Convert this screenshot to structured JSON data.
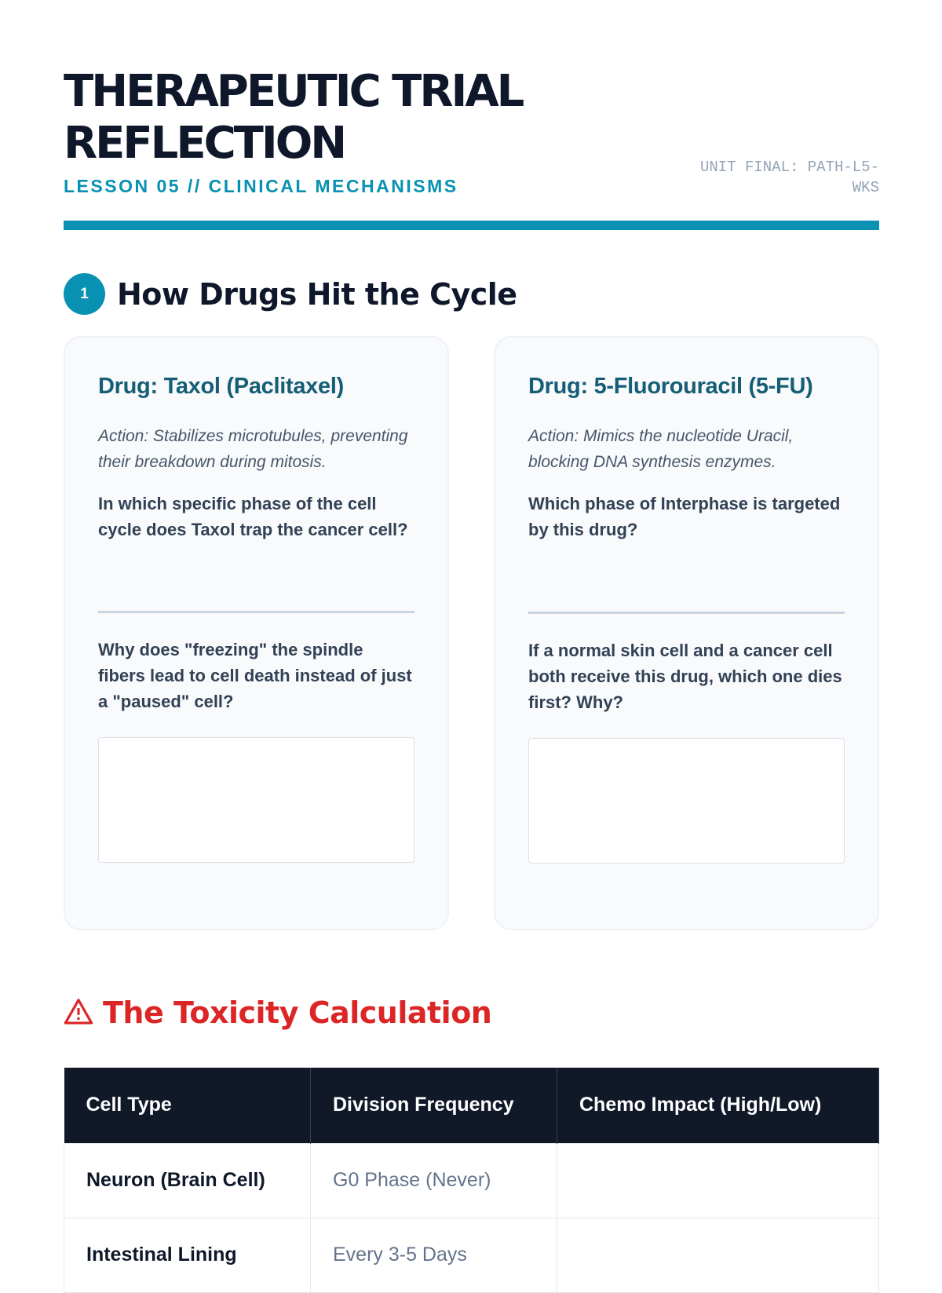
{
  "header": {
    "title": "THERAPEUTIC TRIAL REFLECTION",
    "subtitle": "LESSON 05 // CLINICAL MECHANISMS",
    "code": "UNIT FINAL: PATH-L5-WKS",
    "accent": "#0891b2"
  },
  "section1": {
    "number": "1",
    "title": "How Drugs Hit the Cycle"
  },
  "cards": [
    {
      "title": "Drug: Taxol (Paclitaxel)",
      "action": "Action: Stabilizes microtubules, preventing their breakdown during mitosis.",
      "q1": "In which specific phase of the cell cycle does Taxol trap the cancer cell?",
      "q2": "Why does \"freezing\" the spindle fibers lead to cell death instead of just a \"paused\" cell?",
      "answer": ""
    },
    {
      "title": "Drug: 5-Fluorouracil (5-FU)",
      "action": "Action: Mimics the nucleotide Uracil, blocking DNA synthesis enzymes.",
      "q1": "Which phase of Interphase is targeted by this drug?",
      "q2": "If a normal skin cell and a cancer cell both receive this drug, which one dies first? Why?",
      "answer": ""
    }
  ],
  "section2": {
    "icon": "warning-triangle-icon",
    "title": "The Toxicity Calculation",
    "color": "#dc2626"
  },
  "table": {
    "headers": [
      "Cell Type",
      "Division Frequency",
      "Chemo Impact (High/Low)"
    ],
    "rows": [
      [
        "Neuron (Brain Cell)",
        "G0 Phase (Never)",
        ""
      ],
      [
        "Intestinal Lining",
        "Every 3-5 Days",
        ""
      ]
    ]
  }
}
